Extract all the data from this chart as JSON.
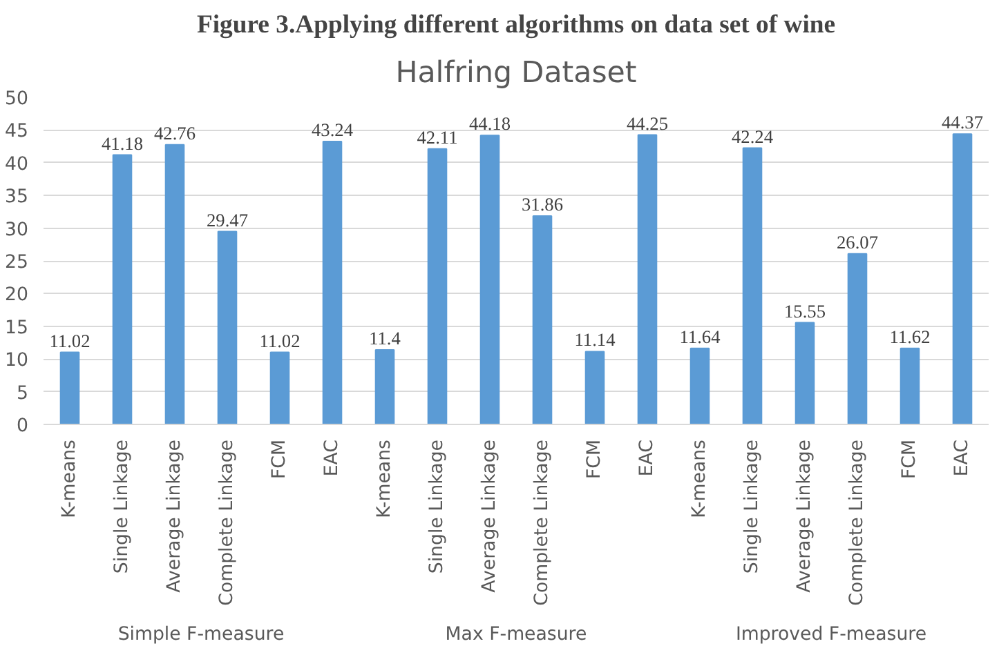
{
  "chart_data": {
    "type": "bar",
    "title": "Figure 3.Applying different algorithms on data set of wine",
    "subtitle": "Halfring Dataset",
    "categories": [
      "K-means",
      "Single Linkage",
      "Average Linkage",
      "Complete Linkage",
      "FCM",
      "EAC",
      "K-means",
      "Single Linkage",
      "Average Linkage",
      "Complete Linkage",
      "FCM",
      "EAC",
      "K-means",
      "Single Linkage",
      "Average Linkage",
      "Complete Linkage",
      "FCM",
      "EAC"
    ],
    "values": [
      11.02,
      41.18,
      42.76,
      29.47,
      11.02,
      43.24,
      11.4,
      42.11,
      44.18,
      31.86,
      11.14,
      44.25,
      11.64,
      42.24,
      15.55,
      26.07,
      11.62,
      44.37
    ],
    "color": "#5b9bd5",
    "annotations": [
      "Simple F-measure",
      "Max F-measure",
      "Improved F-measure"
    ],
    "ylim": [
      0,
      50
    ],
    "yticks": [
      0,
      5,
      10,
      15,
      20,
      25,
      30,
      35,
      40,
      45,
      50
    ],
    "grid": "y",
    "data_labels": true
  }
}
